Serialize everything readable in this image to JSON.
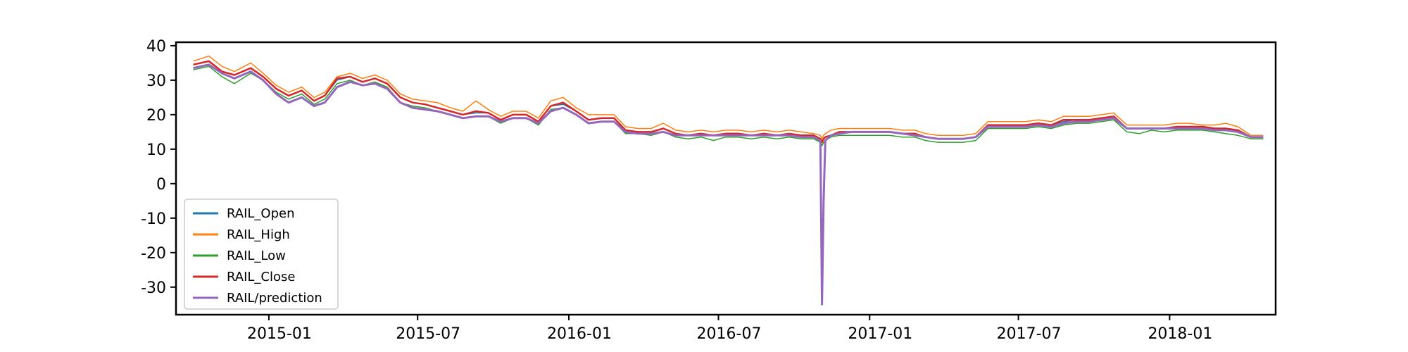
{
  "chart_data": {
    "type": "line",
    "title": "",
    "xlabel": "",
    "ylabel": "",
    "ylim": [
      -38,
      41
    ],
    "x_range": [
      "2014-09-10",
      "2018-05-10"
    ],
    "x_ticks": [
      "2015-01",
      "2015-07",
      "2016-01",
      "2016-07",
      "2017-01",
      "2017-07",
      "2018-01"
    ],
    "y_ticks": [
      40,
      30,
      20,
      10,
      0,
      -10,
      -20,
      -30
    ],
    "grid": false,
    "legend_position": "lower-left",
    "x": [
      "2014-10-01",
      "2014-10-20",
      "2014-11-05",
      "2014-11-20",
      "2014-12-10",
      "2014-12-25",
      "2015-01-10",
      "2015-01-25",
      "2015-02-10",
      "2015-02-25",
      "2015-03-10",
      "2015-03-25",
      "2015-04-10",
      "2015-04-25",
      "2015-05-10",
      "2015-05-25",
      "2015-06-10",
      "2015-06-25",
      "2015-07-10",
      "2015-07-25",
      "2015-08-10",
      "2015-08-25",
      "2015-09-10",
      "2015-09-25",
      "2015-10-10",
      "2015-10-25",
      "2015-11-10",
      "2015-11-25",
      "2015-12-10",
      "2015-12-25",
      "2016-01-10",
      "2016-01-25",
      "2016-02-10",
      "2016-02-25",
      "2016-03-10",
      "2016-03-25",
      "2016-04-10",
      "2016-04-25",
      "2016-05-10",
      "2016-05-25",
      "2016-06-10",
      "2016-06-25",
      "2016-07-10",
      "2016-07-25",
      "2016-08-10",
      "2016-08-25",
      "2016-09-10",
      "2016-09-25",
      "2016-10-10",
      "2016-10-25",
      "2016-11-02",
      "2016-11-04",
      "2016-11-06",
      "2016-11-08",
      "2016-11-15",
      "2016-11-25",
      "2016-12-10",
      "2016-12-25",
      "2017-01-10",
      "2017-01-25",
      "2017-02-10",
      "2017-02-25",
      "2017-03-10",
      "2017-03-25",
      "2017-04-10",
      "2017-04-25",
      "2017-05-10",
      "2017-05-25",
      "2017-06-10",
      "2017-06-25",
      "2017-07-10",
      "2017-07-25",
      "2017-08-10",
      "2017-08-25",
      "2017-09-10",
      "2017-09-25",
      "2017-10-10",
      "2017-10-25",
      "2017-11-10",
      "2017-11-25",
      "2017-12-10",
      "2017-12-25",
      "2018-01-10",
      "2018-01-25",
      "2018-02-10",
      "2018-02-25",
      "2018-03-10",
      "2018-03-25",
      "2018-04-10",
      "2018-04-25"
    ],
    "series": [
      {
        "name": "RAIL_Open",
        "color": "#1f77b4",
        "values": [
          34.5,
          35.5,
          32.5,
          31.5,
          33.5,
          31.0,
          27.5,
          25.5,
          27.0,
          24.0,
          25.5,
          30.0,
          31.0,
          29.5,
          30.5,
          29.0,
          25.0,
          23.5,
          23.0,
          22.0,
          21.0,
          20.0,
          20.5,
          20.5,
          18.5,
          20.0,
          20.0,
          18.0,
          22.5,
          23.0,
          21.0,
          18.5,
          19.0,
          19.0,
          15.5,
          15.0,
          15.0,
          16.0,
          14.5,
          14.0,
          14.5,
          14.0,
          14.5,
          14.5,
          14.0,
          14.5,
          14.0,
          14.5,
          14.0,
          14.0,
          13.0,
          12.0,
          13.0,
          13.5,
          14.0,
          15.0,
          15.0,
          15.0,
          15.0,
          15.0,
          14.5,
          14.5,
          13.5,
          13.0,
          13.0,
          13.0,
          13.5,
          17.0,
          17.0,
          17.0,
          17.0,
          17.5,
          17.0,
          18.0,
          18.5,
          18.5,
          19.0,
          19.5,
          16.0,
          16.0,
          16.0,
          16.0,
          16.5,
          16.5,
          16.5,
          16.0,
          16.0,
          15.5,
          13.5,
          13.5
        ]
      },
      {
        "name": "RAIL_High",
        "color": "#ff7f0e",
        "values": [
          35.5,
          37.0,
          34.0,
          32.5,
          35.0,
          32.0,
          28.5,
          26.5,
          28.0,
          25.0,
          26.5,
          31.0,
          32.0,
          30.5,
          31.5,
          30.0,
          26.0,
          24.5,
          24.0,
          23.5,
          22.0,
          21.0,
          24.0,
          21.5,
          19.5,
          21.0,
          21.0,
          19.0,
          24.0,
          25.0,
          22.0,
          20.0,
          20.0,
          20.0,
          16.5,
          16.0,
          16.0,
          17.5,
          15.5,
          15.0,
          15.5,
          15.0,
          15.5,
          15.5,
          15.0,
          15.5,
          15.0,
          15.5,
          15.0,
          14.5,
          14.0,
          13.0,
          14.0,
          14.5,
          15.5,
          16.0,
          16.0,
          16.0,
          16.0,
          16.0,
          15.5,
          15.5,
          14.5,
          14.0,
          14.0,
          14.0,
          14.5,
          18.0,
          18.0,
          18.0,
          18.0,
          18.5,
          18.0,
          19.5,
          19.5,
          19.5,
          20.0,
          20.5,
          17.0,
          17.0,
          17.0,
          17.0,
          17.5,
          17.5,
          17.0,
          17.0,
          17.5,
          16.5,
          14.0,
          14.0
        ]
      },
      {
        "name": "RAIL_Low",
        "color": "#2ca02c",
        "values": [
          33.0,
          34.0,
          31.0,
          29.0,
          32.0,
          30.0,
          26.5,
          24.5,
          26.0,
          23.0,
          24.5,
          29.0,
          30.0,
          28.5,
          29.5,
          28.0,
          23.5,
          22.5,
          22.0,
          21.0,
          20.0,
          19.0,
          19.5,
          19.5,
          17.5,
          19.0,
          19.0,
          17.0,
          21.5,
          22.0,
          20.0,
          17.5,
          18.0,
          18.0,
          14.5,
          14.5,
          14.0,
          15.0,
          13.5,
          13.0,
          13.5,
          12.5,
          13.5,
          13.5,
          13.0,
          13.5,
          13.0,
          13.5,
          13.0,
          13.0,
          12.0,
          11.0,
          12.0,
          12.5,
          13.5,
          14.0,
          14.0,
          14.0,
          14.0,
          14.0,
          13.5,
          13.5,
          12.5,
          12.0,
          12.0,
          12.0,
          12.5,
          16.0,
          16.0,
          16.0,
          16.0,
          16.5,
          16.0,
          17.0,
          17.5,
          17.5,
          18.0,
          18.5,
          15.0,
          14.5,
          15.5,
          15.0,
          15.5,
          15.5,
          15.5,
          15.0,
          14.5,
          14.0,
          13.0,
          13.0
        ]
      },
      {
        "name": "RAIL_Close",
        "color": "#d62728",
        "values": [
          34.5,
          35.5,
          32.5,
          31.5,
          33.5,
          31.0,
          27.5,
          25.5,
          27.0,
          24.0,
          25.5,
          30.5,
          31.0,
          29.5,
          30.5,
          29.0,
          25.0,
          23.5,
          23.0,
          22.0,
          21.0,
          20.0,
          21.0,
          20.5,
          18.5,
          20.0,
          20.0,
          18.0,
          22.5,
          23.5,
          21.0,
          18.5,
          19.0,
          19.0,
          15.5,
          15.0,
          15.0,
          16.0,
          14.5,
          14.0,
          14.5,
          14.0,
          14.5,
          14.5,
          14.0,
          14.5,
          14.0,
          14.5,
          14.0,
          14.0,
          13.0,
          12.0,
          13.0,
          13.5,
          14.0,
          15.0,
          15.0,
          15.0,
          15.0,
          15.0,
          14.5,
          14.5,
          13.5,
          13.0,
          13.0,
          13.0,
          13.5,
          17.0,
          17.0,
          17.0,
          17.0,
          17.5,
          17.0,
          18.5,
          18.5,
          18.5,
          19.0,
          19.5,
          16.0,
          16.0,
          16.0,
          16.0,
          16.5,
          16.5,
          16.5,
          16.0,
          16.0,
          15.5,
          13.5,
          13.5
        ]
      },
      {
        "name": "RAIL/prediction",
        "color": "#9467bd",
        "values": [
          33.5,
          34.5,
          32.0,
          30.5,
          32.5,
          30.0,
          26.0,
          23.5,
          25.0,
          22.5,
          23.5,
          28.0,
          29.5,
          28.5,
          29.0,
          27.5,
          23.5,
          22.0,
          21.5,
          21.0,
          20.0,
          19.0,
          19.5,
          19.5,
          18.0,
          19.0,
          19.0,
          17.5,
          21.0,
          22.0,
          20.0,
          17.5,
          18.0,
          18.0,
          15.0,
          14.5,
          14.5,
          15.0,
          14.0,
          14.0,
          14.0,
          14.0,
          14.0,
          14.0,
          14.0,
          14.0,
          14.0,
          14.0,
          13.5,
          13.5,
          12.5,
          -35.0,
          -5.0,
          12.5,
          14.0,
          14.5,
          15.0,
          15.0,
          15.0,
          15.0,
          14.5,
          14.0,
          13.5,
          13.0,
          13.0,
          13.0,
          13.5,
          16.5,
          16.5,
          16.5,
          16.5,
          17.0,
          16.5,
          17.5,
          18.0,
          18.0,
          18.5,
          19.0,
          16.0,
          16.0,
          16.0,
          16.0,
          16.0,
          16.0,
          16.0,
          15.5,
          15.5,
          15.0,
          13.5,
          13.5
        ]
      }
    ]
  }
}
